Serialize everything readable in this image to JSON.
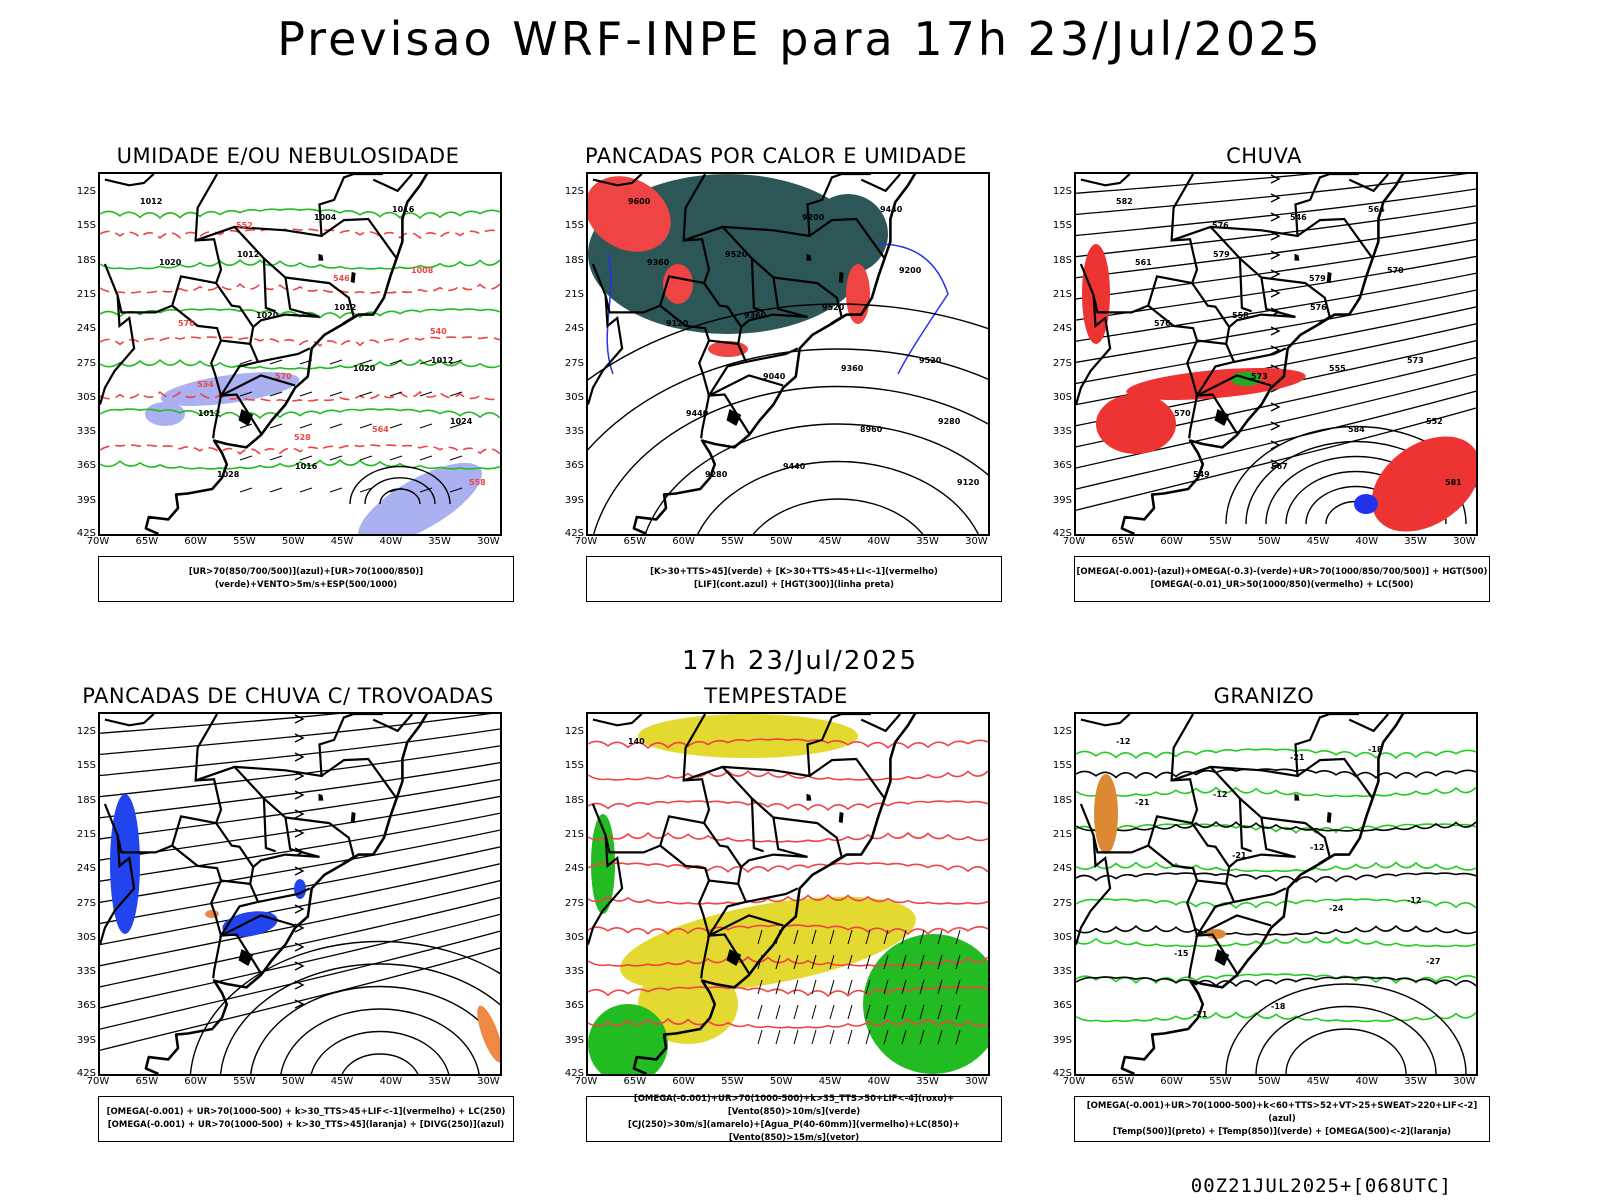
{
  "main_title": "Previsao WRF-INPE  para 17h 23/Jul/2025",
  "mid_title": "17h 23/Jul/2025",
  "footer": "00Z21JUL2025+[068UTC]",
  "axes": {
    "lat_labels": [
      "12S",
      "15S",
      "18S",
      "21S",
      "24S",
      "27S",
      "30S",
      "33S",
      "36S",
      "39S",
      "42S"
    ],
    "lon_labels": [
      "70W",
      "65W",
      "60W",
      "55W",
      "50W",
      "45W",
      "40W",
      "35W",
      "30W"
    ]
  },
  "panels": [
    {
      "title": "UMIDADE E/OU NEBULOSIDADE",
      "legend": [
        "[UR>70(850/700/500)](azul)+[UR>70(1000/850)](verde)+VENTO>5m/s+ESP(500/1000)"
      ],
      "colors": {
        "green": "#22bb22",
        "red": "#ee4444",
        "blue": "#aab0f0"
      },
      "labels": [
        "1012",
        "1012",
        "1012",
        "1012",
        "1012",
        "1016",
        "1016",
        "1020",
        "1020",
        "1020",
        "1024",
        "1028",
        "1004",
        "1008",
        "576",
        "570",
        "564",
        "558",
        "552",
        "546",
        "540",
        "534",
        "528"
      ]
    },
    {
      "title": "PANCADAS POR CALOR E UMIDADE",
      "legend": [
        "[K>30+TTS>45](verde) + [K>30+TTS>45+LI<-1](vermelho)",
        "[LIF](cont.azul) + [HGT(300)](linha preta)"
      ],
      "colors": {
        "teal": "#2d5757",
        "red": "#ee4444",
        "blue": "#2233ee"
      },
      "labels": [
        "9600",
        "9520",
        "9520",
        "9520",
        "9440",
        "9440",
        "9440",
        "9360",
        "9360",
        "9360",
        "9280",
        "9280",
        "9200",
        "9200",
        "9120",
        "9040",
        "8960",
        "9120"
      ]
    },
    {
      "title": "CHUVA",
      "legend": [
        "[OMEGA(-0.001)-(azul)+OMEGA(-0.3)-(verde)+UR>70(1000/850/700/500)] + HGT(500)",
        "[OMEGA(-0.01)_UR>50(1000/850)(vermelho) + LC(500)"
      ],
      "colors": {
        "red": "#ee3333",
        "blue": "#2233ee",
        "green": "#22aa22"
      },
      "labels": [
        "582",
        "579",
        "576",
        "573",
        "570",
        "567",
        "564",
        "561",
        "558",
        "555",
        "552",
        "549",
        "546",
        "570",
        "576",
        "573",
        "584",
        "581",
        "576",
        "579"
      ]
    },
    {
      "title": "PANCADAS DE CHUVA C/ TROVOADAS",
      "legend": [
        "[OMEGA(-0.001) + UR>70(1000-500) + k>30_TTS>45+LIF<-1](vermelho) + LC(250)",
        "[OMEGA(-0.001) + UR>70(1000-500) + k>30_TTS>45](laranja) + [DIVG(250)](azul)"
      ],
      "colors": {
        "blue": "#2244ee",
        "orange": "#ee8844",
        "red": "#ee4444"
      },
      "labels": []
    },
    {
      "title": "TEMPESTADE",
      "legend": [
        "[OMEGA(-0.001)+UR>70(1000-500)+k>35_TTS>50+LIF<-4](roxo)+[Vento(850)>10m/s](verde)",
        "[CJ(250)>30m/s](amarelo)+[Agua_P(40-60mm)](vermelho)+LC(850)+[Vento(850)>15m/s](vetor)"
      ],
      "colors": {
        "yellow": "#e3d930",
        "green": "#22bb22",
        "red": "#ee4444"
      },
      "labels": [
        "140"
      ]
    },
    {
      "title": "GRANIZO",
      "legend": [
        "[OMEGA(-0.001)+UR>70(1000-500)+k<60+TTS>52+VT>25+SWEAT>220+LIF<-2](azul)",
        "[Temp(500)](preto) + [Temp(850)](verde) + [OMEGA(500)<-2](laranja)"
      ],
      "colors": {
        "green": "#22cc22",
        "orange": "#dd8833"
      },
      "labels": [
        "-12",
        "-12",
        "-12",
        "-12",
        "-15",
        "-18",
        "-18",
        "-21",
        "-21",
        "-24",
        "-27",
        "-21",
        "-21"
      ]
    }
  ]
}
